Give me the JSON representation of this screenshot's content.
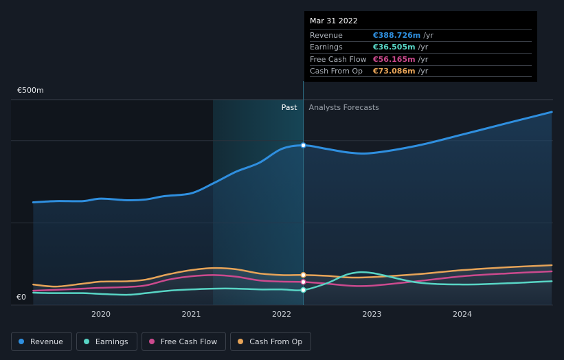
{
  "chart_data": {
    "type": "line",
    "y_top_label": "€500m",
    "y_zero_label": "€0",
    "ylim": [
      0,
      500
    ],
    "x_ticks": [
      "2020",
      "2021",
      "2022",
      "2023",
      "2024"
    ],
    "past_label": "Past",
    "forecast_label": "Analysts Forecasts",
    "series": [
      {
        "name": "Revenue",
        "color": "#2f8fdf",
        "points": [
          [
            2019.25,
            250
          ],
          [
            2019.5,
            253
          ],
          [
            2019.8,
            253
          ],
          [
            2020.0,
            259
          ],
          [
            2020.3,
            255
          ],
          [
            2020.5,
            257
          ],
          [
            2020.7,
            265
          ],
          [
            2021.0,
            272
          ],
          [
            2021.25,
            297
          ],
          [
            2021.5,
            325
          ],
          [
            2021.75,
            346
          ],
          [
            2022.0,
            380
          ],
          [
            2022.24,
            388.7
          ],
          [
            2022.5,
            380
          ],
          [
            2022.75,
            371
          ],
          [
            2023.0,
            370
          ],
          [
            2023.5,
            388
          ],
          [
            2024.0,
            415
          ],
          [
            2024.5,
            443
          ],
          [
            2024.99,
            470
          ]
        ]
      },
      {
        "name": "Earnings",
        "color": "#58d5c5",
        "points": [
          [
            2019.25,
            30
          ],
          [
            2019.5,
            29
          ],
          [
            2019.8,
            29
          ],
          [
            2020.0,
            27
          ],
          [
            2020.3,
            25
          ],
          [
            2020.5,
            29
          ],
          [
            2020.75,
            35
          ],
          [
            2021.0,
            38
          ],
          [
            2021.25,
            40
          ],
          [
            2021.5,
            40
          ],
          [
            2021.75,
            38
          ],
          [
            2022.0,
            38
          ],
          [
            2022.24,
            36.5
          ],
          [
            2022.5,
            53
          ],
          [
            2022.75,
            76
          ],
          [
            2023.0,
            78
          ],
          [
            2023.5,
            55
          ],
          [
            2024.0,
            50
          ],
          [
            2024.5,
            53
          ],
          [
            2024.99,
            58
          ]
        ]
      },
      {
        "name": "Free Cash Flow",
        "color": "#cc4a8e",
        "points": [
          [
            2019.25,
            35
          ],
          [
            2019.5,
            37
          ],
          [
            2019.8,
            40
          ],
          [
            2020.0,
            42
          ],
          [
            2020.3,
            44
          ],
          [
            2020.5,
            48
          ],
          [
            2020.75,
            62
          ],
          [
            2021.0,
            70
          ],
          [
            2021.25,
            73
          ],
          [
            2021.5,
            69
          ],
          [
            2021.75,
            60
          ],
          [
            2022.0,
            57
          ],
          [
            2022.24,
            56.2
          ],
          [
            2022.5,
            52
          ],
          [
            2022.75,
            47
          ],
          [
            2023.0,
            47
          ],
          [
            2023.5,
            58
          ],
          [
            2024.0,
            70
          ],
          [
            2024.5,
            77
          ],
          [
            2024.99,
            82
          ]
        ]
      },
      {
        "name": "Cash From Op",
        "color": "#e7a458",
        "points": [
          [
            2019.25,
            50
          ],
          [
            2019.5,
            45
          ],
          [
            2019.8,
            52
          ],
          [
            2020.0,
            57
          ],
          [
            2020.3,
            58
          ],
          [
            2020.5,
            62
          ],
          [
            2020.75,
            75
          ],
          [
            2021.0,
            85
          ],
          [
            2021.25,
            90
          ],
          [
            2021.5,
            87
          ],
          [
            2021.75,
            77
          ],
          [
            2022.0,
            73
          ],
          [
            2022.24,
            73.1
          ],
          [
            2022.5,
            71
          ],
          [
            2022.75,
            67
          ],
          [
            2023.0,
            68
          ],
          [
            2023.5,
            75
          ],
          [
            2024.0,
            85
          ],
          [
            2024.5,
            92
          ],
          [
            2024.99,
            97
          ]
        ]
      }
    ]
  },
  "tooltip": {
    "date": "Mar 31 2022",
    "rows": [
      {
        "label": "Revenue",
        "value": "€388.726m",
        "unit": "/yr",
        "color": "#2f8fdf"
      },
      {
        "label": "Earnings",
        "value": "€36.505m",
        "unit": "/yr",
        "color": "#58d5c5"
      },
      {
        "label": "Free Cash Flow",
        "value": "€56.165m",
        "unit": "/yr",
        "color": "#cc4a8e"
      },
      {
        "label": "Cash From Op",
        "value": "€73.086m",
        "unit": "/yr",
        "color": "#e7a458"
      }
    ]
  },
  "legend": [
    {
      "label": "Revenue",
      "color": "#2f8fdf"
    },
    {
      "label": "Earnings",
      "color": "#58d5c5"
    },
    {
      "label": "Free Cash Flow",
      "color": "#cc4a8e"
    },
    {
      "label": "Cash From Op",
      "color": "#e7a458"
    }
  ]
}
